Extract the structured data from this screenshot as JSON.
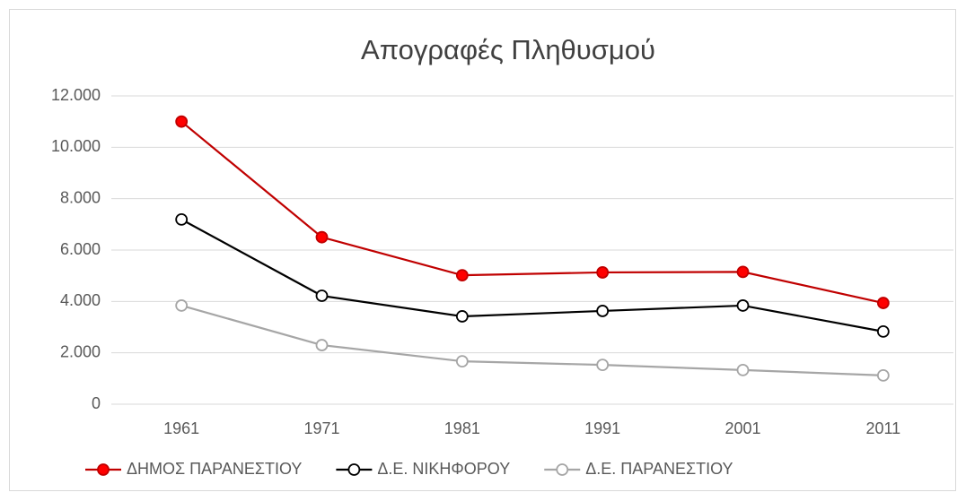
{
  "chart_data": {
    "type": "line",
    "title": "Απογραφές Πληθυσμού",
    "categories": [
      "1961",
      "1971",
      "1981",
      "1991",
      "2001",
      "2011"
    ],
    "series": [
      {
        "name": "ΔΗΜΟΣ ΠΑΡΑΝΕΣΤΙΟΥ",
        "color": "#c00000",
        "marker_fill": "#ff0000",
        "values": [
          11000,
          6500,
          5020,
          5130,
          5150,
          3940
        ]
      },
      {
        "name": "Δ.Ε. ΝΙΚΗΦΟΡΟΥ",
        "color": "#000000",
        "marker_fill": "#ffffff",
        "values": [
          7190,
          4220,
          3420,
          3630,
          3840,
          2830
        ]
      },
      {
        "name": "Δ.Ε. ΠΑΡΑΝΕΣΤΙΟΥ",
        "color": "#a6a6a6",
        "marker_fill": "#ffffff",
        "values": [
          3840,
          2300,
          1670,
          1530,
          1330,
          1120
        ]
      }
    ],
    "ylim": [
      0,
      12000
    ],
    "yticks": [
      0,
      {
        "value": 2000,
        "label": "2.000"
      },
      {
        "value": 4000,
        "label": "4.000"
      },
      {
        "value": 6000,
        "label": "6.000"
      },
      {
        "value": 8000,
        "label": "8.000"
      },
      {
        "value": 10000,
        "label": "10.000"
      },
      {
        "value": 12000,
        "label": "12.000"
      }
    ],
    "grid": true,
    "legend": "bottom"
  }
}
